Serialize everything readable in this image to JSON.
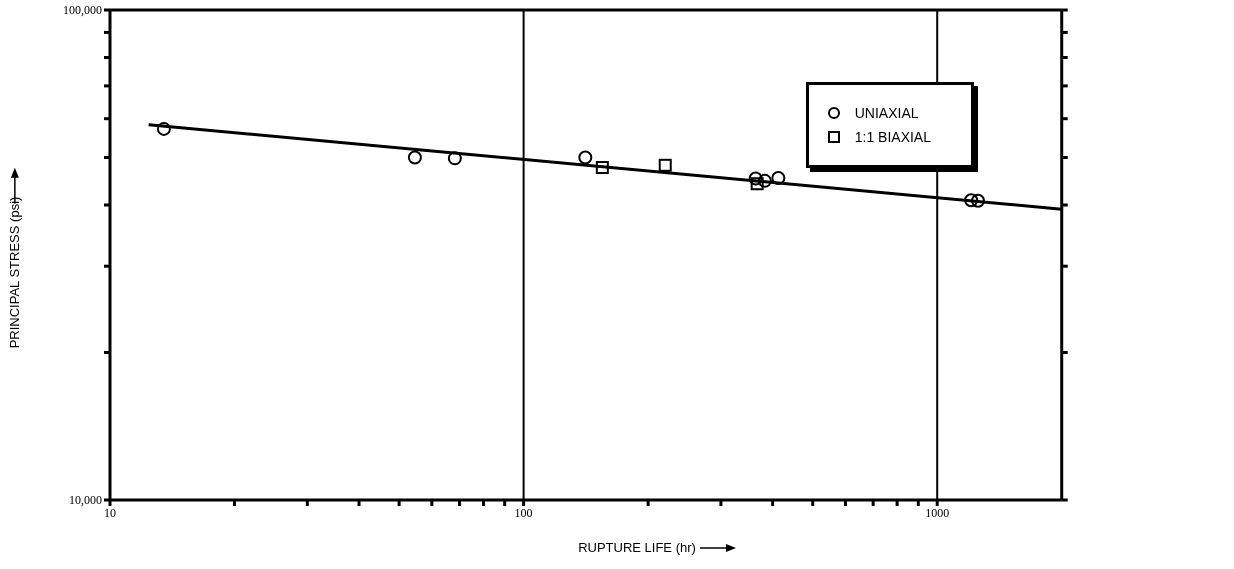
{
  "chart_data": {
    "type": "scatter",
    "xlabel": "RUPTURE LIFE (hr)",
    "ylabel": "PRINCIPAL STRESS (psi)",
    "log": "xy",
    "xlim": [
      10,
      2000
    ],
    "ylim": [
      10000,
      100000
    ],
    "xticks": [
      10,
      {
        "value": 20,
        "label": null
      },
      {
        "value": 30,
        "label": null
      },
      {
        "value": 40,
        "label": null
      },
      {
        "value": 50,
        "label": null
      },
      {
        "value": 60,
        "label": null
      },
      {
        "value": 70,
        "label": null
      },
      {
        "value": 80,
        "label": null
      },
      {
        "value": 90,
        "label": null
      },
      100,
      {
        "value": 200,
        "label": null
      },
      {
        "value": 300,
        "label": null
      },
      {
        "value": 400,
        "label": null
      },
      {
        "value": 500,
        "label": null
      },
      {
        "value": 600,
        "label": null
      },
      {
        "value": 700,
        "label": null
      },
      {
        "value": 800,
        "label": null
      },
      {
        "value": 900,
        "label": null
      },
      1000
    ],
    "yticks": [
      {
        "value": 10000,
        "label": "10,000"
      },
      {
        "value": 20000,
        "label": null
      },
      {
        "value": 30000,
        "label": null
      },
      {
        "value": 40000,
        "label": null
      },
      {
        "value": 50000,
        "label": null
      },
      {
        "value": 60000,
        "label": null
      },
      {
        "value": 70000,
        "label": null
      },
      {
        "value": 80000,
        "label": null
      },
      {
        "value": 90000,
        "label": null
      },
      {
        "value": 100000,
        "label": "100,000"
      }
    ],
    "ref_lines": [
      {
        "axis": "x",
        "value": 100,
        "color": "#000000"
      },
      {
        "axis": "x",
        "value": 1000,
        "color": "#000000"
      }
    ],
    "legend": "top right",
    "series": [
      {
        "name": "UNIAXIAL",
        "color": "#000000",
        "marker": "circle",
        "x": [
          13.5,
          54.6,
          68.2,
          141,
          364,
          383,
          413,
          1208,
          1255
        ],
        "values": [
          57200,
          50000,
          49800,
          50000,
          45300,
          44800,
          45400,
          40900,
          40800
        ]
      },
      {
        "name": "1:1 BIAXIAL",
        "color": "#000000",
        "marker": "square",
        "x": [
          155,
          220,
          367
        ],
        "values": [
          47700,
          48200,
          44200
        ]
      },
      {
        "type": "line",
        "color": "#000000",
        "marker": "none",
        "x": [
          12.4,
          2000
        ],
        "values": [
          58300,
          39200
        ]
      }
    ]
  }
}
